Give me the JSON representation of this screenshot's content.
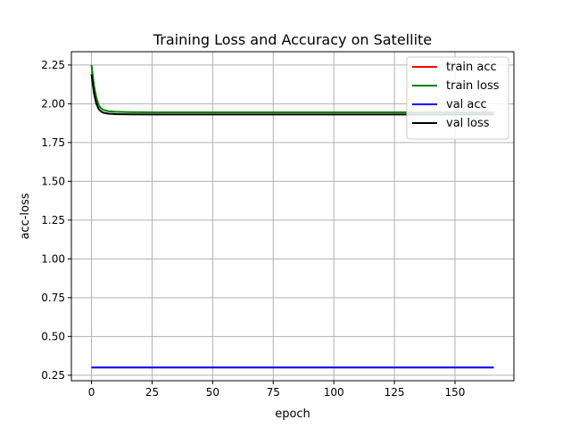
{
  "chart_data": {
    "type": "line",
    "title": "Training Loss and Accuracy on Satellite",
    "xlabel": "epoch",
    "ylabel": "acc-loss",
    "xlim": [
      -8.3,
      174.3
    ],
    "ylim": [
      0.2145,
      2.3355
    ],
    "xticks": [
      0,
      25,
      50,
      75,
      100,
      125,
      150
    ],
    "yticks": [
      0.25,
      0.5,
      0.75,
      1.0,
      1.25,
      1.5,
      1.75,
      2.0,
      2.25
    ],
    "grid": true,
    "legend_position": "top-right",
    "series": [
      {
        "name": "train acc",
        "color": "#ff0000",
        "points": [
          [
            0,
            0.3
          ],
          [
            166,
            0.3
          ]
        ]
      },
      {
        "name": "train loss",
        "color": "#008000",
        "points": [
          [
            0,
            2.25
          ],
          [
            1,
            2.12
          ],
          [
            2,
            2.04
          ],
          [
            3,
            1.99
          ],
          [
            4,
            1.97
          ],
          [
            5,
            1.96
          ],
          [
            7,
            1.952
          ],
          [
            10,
            1.948
          ],
          [
            15,
            1.946
          ],
          [
            25,
            1.945
          ],
          [
            50,
            1.945
          ],
          [
            100,
            1.945
          ],
          [
            166,
            1.945
          ]
        ]
      },
      {
        "name": "val acc",
        "color": "#0000ff",
        "points": [
          [
            0,
            0.3
          ],
          [
            166,
            0.3
          ]
        ]
      },
      {
        "name": "val loss",
        "color": "#000000",
        "points": [
          [
            0,
            2.19
          ],
          [
            1,
            2.07
          ],
          [
            2,
            2.0
          ],
          [
            3,
            1.965
          ],
          [
            4,
            1.95
          ],
          [
            5,
            1.942
          ],
          [
            7,
            1.936
          ],
          [
            10,
            1.933
          ],
          [
            15,
            1.932
          ],
          [
            25,
            1.931
          ],
          [
            50,
            1.931
          ],
          [
            100,
            1.931
          ],
          [
            166,
            1.931
          ]
        ]
      }
    ]
  }
}
